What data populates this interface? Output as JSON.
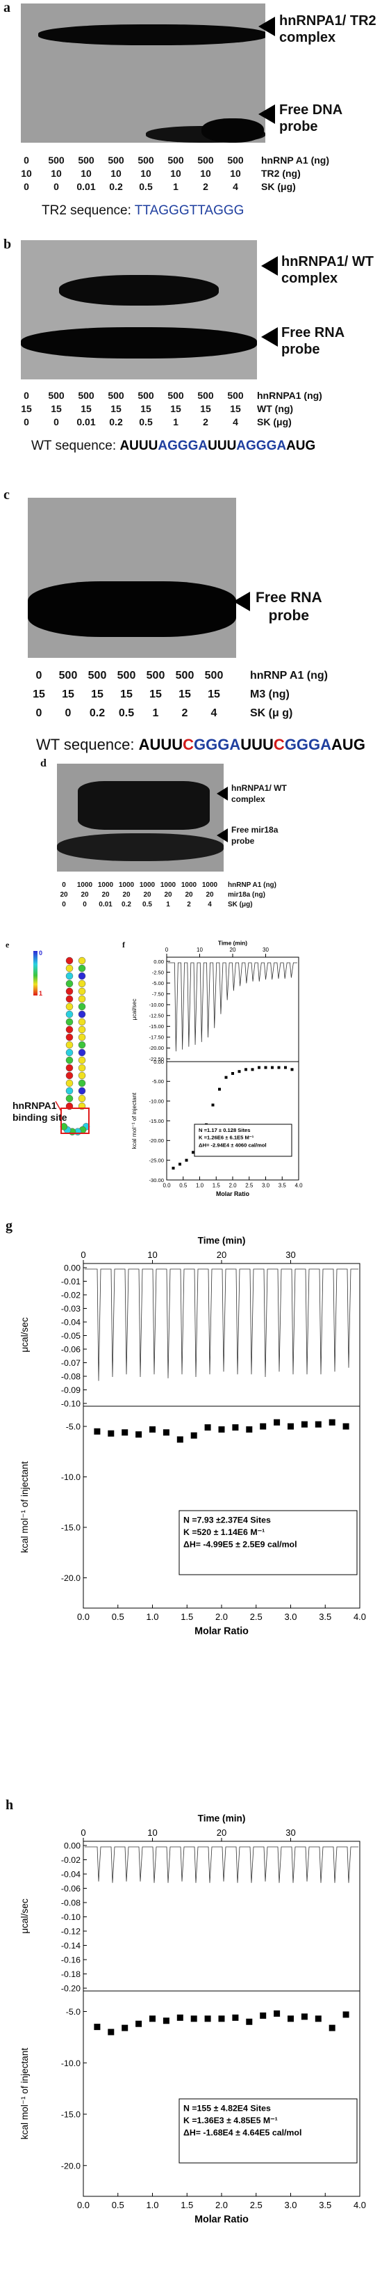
{
  "panel_a": {
    "letter": "a",
    "arrow_top": "hnRNPA1/ TR2\ncomplex",
    "arrow_bottom": "Free DNA\nprobe",
    "rows": [
      {
        "values": [
          "0",
          "500",
          "500",
          "500",
          "500",
          "500",
          "500",
          "500"
        ],
        "label": "hnRNP A1 (ng)"
      },
      {
        "values": [
          "10",
          "10",
          "10",
          "10",
          "10",
          "10",
          "10",
          "10"
        ],
        "label": "TR2 (ng)"
      },
      {
        "values": [
          "0",
          "0",
          "0.01",
          "0.2",
          "0.5",
          "1",
          "2",
          "4"
        ],
        "label": "SK (μg)"
      }
    ],
    "seq_prefix": "TR2 sequence: ",
    "seq": "TTAGGGTTAGGG"
  },
  "panel_b": {
    "letter": "b",
    "arrow_top": "hnRNPA1/ WT\ncomplex",
    "arrow_bottom": "Free RNA\nprobe",
    "rows": [
      {
        "values": [
          "0",
          "500",
          "500",
          "500",
          "500",
          "500",
          "500",
          "500"
        ],
        "label": "hnRNPA1 (ng)"
      },
      {
        "values": [
          "15",
          "15",
          "15",
          "15",
          "15",
          "15",
          "15",
          "15"
        ],
        "label": "WT (ng)"
      },
      {
        "values": [
          "0",
          "0",
          "0.01",
          "0.2",
          "0.5",
          "1",
          "2",
          "4"
        ],
        "label": "SK (μg)"
      }
    ],
    "seq_prefix": "WT sequence: ",
    "seq_parts": [
      "A",
      "UUU",
      "AGGGA",
      "UUU",
      "AGGGA",
      "AUG"
    ]
  },
  "panel_c": {
    "letter": "c",
    "arrow": "Free RNA\nprobe",
    "rows": [
      {
        "values": [
          "0",
          "500",
          "500",
          "500",
          "500",
          "500",
          "500"
        ],
        "label": "hnRNP A1 (ng)"
      },
      {
        "values": [
          "15",
          "15",
          "15",
          "15",
          "15",
          "15",
          "15"
        ],
        "label": "M3 (ng)"
      },
      {
        "values": [
          "0",
          "0",
          "0.2",
          "0.5",
          "1",
          "2",
          "4"
        ],
        "label": "SK (μ g)"
      }
    ],
    "seq_prefix": "WT sequence: ",
    "seq_parts": [
      "A",
      "UUU",
      "C",
      "GGGA",
      "UUU",
      "C",
      "GGGA",
      "AUG"
    ]
  },
  "panel_d": {
    "letter": "d",
    "arrow_top": "hnRNPA1/ WT\ncomplex",
    "arrow_bottom": "Free mir18a\nprobe",
    "rows": [
      {
        "values": [
          "0",
          "1000",
          "1000",
          "1000",
          "1000",
          "1000",
          "1000",
          "1000"
        ],
        "label": "hnRNP A1 (ng)"
      },
      {
        "values": [
          "20",
          "20",
          "20",
          "20",
          "20",
          "20",
          "20",
          "20"
        ],
        "label": "mir18a (ng)"
      },
      {
        "values": [
          "0",
          "0",
          "0.01",
          "0.2",
          "0.5",
          "1",
          "2",
          "4"
        ],
        "label": "SK (μg)"
      }
    ]
  },
  "panel_e": {
    "letter": "e",
    "scale_top": "0",
    "scale_bottom": "1",
    "site_label": "hnRNPA1\nbinding site"
  },
  "panel_f": {
    "letter": "f",
    "time_label": "Time (min)",
    "time_ticks": [
      "0",
      "10",
      "20",
      "30"
    ],
    "y_top_label": "μcal/sec",
    "y_top_ticks": [
      "0.00",
      "-2.50",
      "-5.00",
      "-7.50",
      "-10.00",
      "-12.50",
      "-15.00",
      "-17.50",
      "-20.00",
      "-22.50"
    ],
    "y_bottom_label": "kcal mol⁻¹ of injectant",
    "y_bottom_ticks": [
      "0.00",
      "-5.00",
      "-10.00",
      "-15.00",
      "-20.00",
      "-25.00",
      "-30.00"
    ],
    "x_label": "Molar Ratio",
    "x_ticks": [
      "0.0",
      "0.5",
      "1.0",
      "1.5",
      "2.0",
      "2.5",
      "3.0",
      "3.5",
      "4.0"
    ],
    "fit": [
      "N =1.17 ± 0.128 Sites",
      "K =1.26E6 ± 6.1E5 M⁻¹",
      "ΔH= -2.94E4 ± 4060 cal/mol"
    ]
  },
  "panel_g": {
    "letter": "g",
    "time_label": "Time (min)",
    "time_ticks": [
      "0",
      "10",
      "20",
      "30"
    ],
    "y_top_label": "μcal/sec",
    "y_top_ticks": [
      "0.00",
      "-0.01",
      "-0.02",
      "-0.03",
      "-0.04",
      "-0.05",
      "-0.06",
      "-0.07",
      "-0.08",
      "-0.09",
      "-0.10"
    ],
    "y_bottom_label": "kcal mol⁻¹ of injectant",
    "y_bottom_ticks": [
      "-5.0",
      "-10.0",
      "-15.0",
      "-20.0"
    ],
    "x_label": "Molar Ratio",
    "x_ticks": [
      "0.0",
      "0.5",
      "1.0",
      "1.5",
      "2.0",
      "2.5",
      "3.0",
      "3.5",
      "4.0"
    ],
    "fit": [
      "N    =7.93 ±2.37E4 Sites",
      "K    =520 ± 1.14E6 M⁻¹",
      "ΔH= -4.99E5 ± 2.5E9 cal/mol"
    ]
  },
  "panel_h": {
    "letter": "h",
    "time_label": "Time (min)",
    "time_ticks": [
      "0",
      "10",
      "20",
      "30"
    ],
    "y_top_label": "μcal/sec",
    "y_top_ticks": [
      "0.00",
      "-0.02",
      "-0.04",
      "-0.06",
      "-0.08",
      "-0.10",
      "-0.12",
      "-0.14",
      "-0.16",
      "-0.18",
      "-0.20"
    ],
    "y_bottom_label": "kcal mol⁻¹ of injectant",
    "y_bottom_ticks": [
      "-5.0",
      "-10.0",
      "-15.0",
      "-20.0"
    ],
    "x_label": "Molar Ratio",
    "x_ticks": [
      "0.0",
      "0.5",
      "1.0",
      "1.5",
      "2.0",
      "2.5",
      "3.0",
      "3.5",
      "4.0"
    ],
    "fit": [
      "N    =155 ± 4.82E4 Sites",
      "K    =1.36E3 ± 4.85E5 M⁻¹",
      "ΔH= -1.68E4 ± 4.64E5 cal/mol"
    ]
  },
  "chart_data": [
    {
      "type": "scatter",
      "panel": "f",
      "xlabel": "Molar Ratio",
      "ylabel": "kcal mol⁻¹ of injectant",
      "xlim": [
        0,
        4
      ],
      "ylim": [
        -30,
        0
      ],
      "x": [
        0.2,
        0.4,
        0.6,
        0.8,
        1.0,
        1.2,
        1.4,
        1.6,
        1.8,
        2.0,
        2.2,
        2.4,
        2.6,
        2.8,
        3.0,
        3.2,
        3.4,
        3.6,
        3.8
      ],
      "y": [
        -27,
        -26,
        -25,
        -23,
        -20,
        -16,
        -11,
        -7,
        -4,
        -3,
        -2.5,
        -2,
        -2,
        -1.5,
        -1.5,
        -1.5,
        -1.5,
        -1.5,
        -2
      ]
    },
    {
      "type": "scatter",
      "panel": "g",
      "xlabel": "Molar Ratio",
      "ylabel": "kcal mol⁻¹ of injectant",
      "xlim": [
        0,
        4
      ],
      "ylim": [
        -23,
        -3
      ],
      "x": [
        0.2,
        0.4,
        0.6,
        0.8,
        1.0,
        1.2,
        1.4,
        1.6,
        1.8,
        2.0,
        2.2,
        2.4,
        2.6,
        2.8,
        3.0,
        3.2,
        3.4,
        3.6,
        3.8
      ],
      "y": [
        -5.5,
        -5.7,
        -5.6,
        -5.8,
        -5.3,
        -5.6,
        -6.3,
        -5.9,
        -5.1,
        -5.3,
        -5.1,
        -5.3,
        -5.0,
        -4.6,
        -5.0,
        -4.8,
        -4.8,
        -4.6,
        -5.0
      ]
    },
    {
      "type": "scatter",
      "panel": "h",
      "xlabel": "Molar Ratio",
      "ylabel": "kcal mol⁻¹ of injectant",
      "xlim": [
        0,
        4
      ],
      "ylim": [
        -23,
        -3
      ],
      "x": [
        0.2,
        0.4,
        0.6,
        0.8,
        1.0,
        1.2,
        1.4,
        1.6,
        1.8,
        2.0,
        2.2,
        2.4,
        2.6,
        2.8,
        3.0,
        3.2,
        3.4,
        3.6,
        3.8
      ],
      "y": [
        -6.5,
        -7.0,
        -6.6,
        -6.2,
        -5.7,
        -5.9,
        -5.6,
        -5.7,
        -5.7,
        -5.7,
        -5.6,
        -6.0,
        -5.4,
        -5.2,
        -5.7,
        -5.5,
        -5.7,
        -6.6,
        -5.3
      ]
    }
  ]
}
